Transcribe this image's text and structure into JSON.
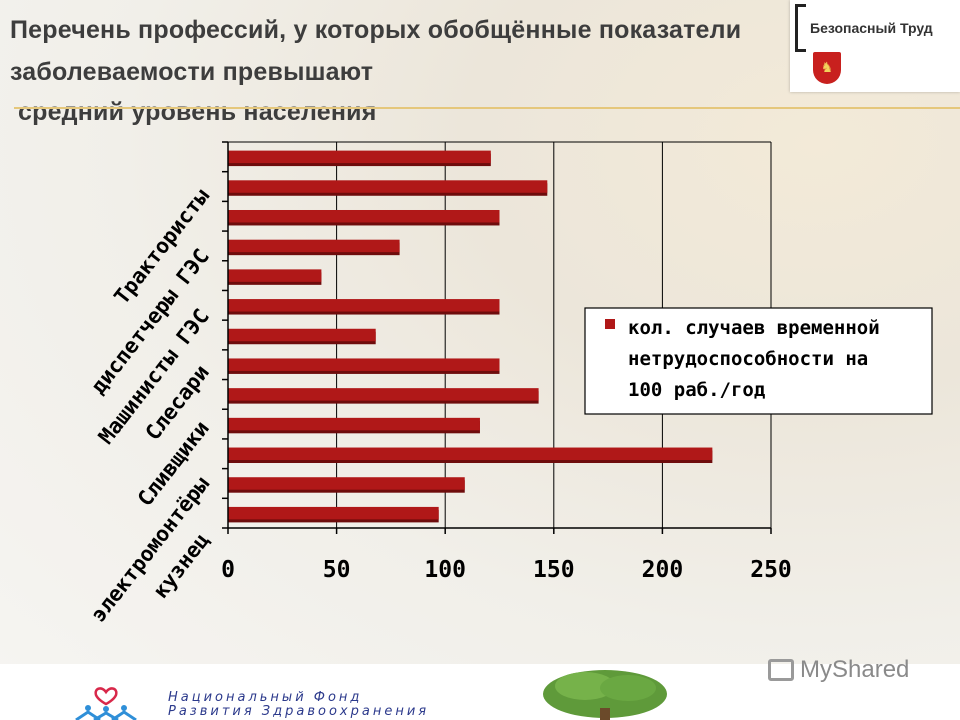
{
  "slide": {
    "title_lines": [
      "Перечень профессий, у которых обобщённые показатели",
      "заболеваемости превышают",
      "средний уровень населения"
    ],
    "logo_text": "Безопасный Труд",
    "footer_fund_line1": "Национальный Фонд",
    "footer_fund_line2": "Развития Здравоохранения",
    "watermark": "MyShared"
  },
  "colors": {
    "bar": "#b01818",
    "bar_dark": "#6e0c0c"
  },
  "chart_data": {
    "type": "bar",
    "orientation": "horizontal",
    "title": "",
    "xlabel": "",
    "ylabel": "",
    "xlim": [
      0,
      250
    ],
    "x_ticks": [
      0,
      50,
      100,
      150,
      200,
      250
    ],
    "grid": "vertical",
    "category_labels_visible": [
      "Трактористы",
      "диспетчеры ГЭС",
      "Машинисты ГЭС",
      "Слесари",
      "Сливщики",
      "электромонтёры",
      "кузнец"
    ],
    "values": [
      121,
      147,
      125,
      79,
      43,
      125,
      68,
      125,
      143,
      116,
      223,
      109,
      97
    ],
    "series": [
      {
        "name": "кол. случаев временной нетрудоспособности на 100 раб./год"
      }
    ],
    "legend": {
      "position": "right",
      "lines": [
        "кол. случаев временной",
        "нетрудоспособности на",
        "100 раб./год"
      ]
    }
  }
}
